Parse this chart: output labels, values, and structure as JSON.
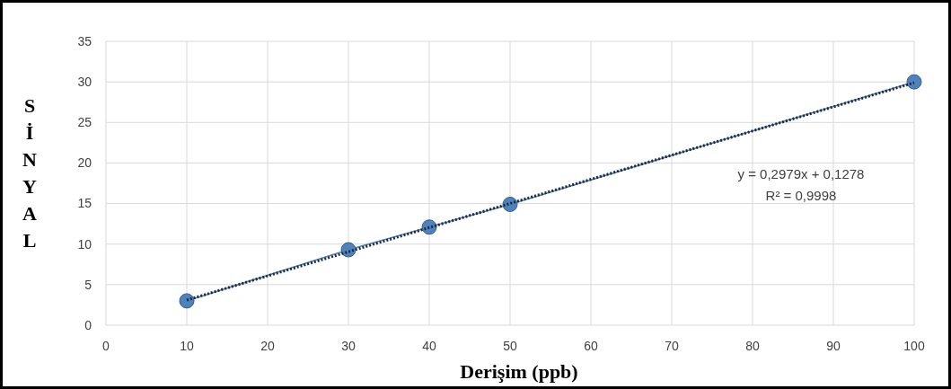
{
  "chart_data": {
    "type": "line",
    "xlabel": "Derişim (ppb)",
    "ylabel": "SİNYAL",
    "xlim": [
      0,
      100
    ],
    "xticks": [
      0,
      10,
      20,
      30,
      40,
      50,
      60,
      70,
      80,
      90,
      100
    ],
    "ylim": [
      0,
      35
    ],
    "yticks": [
      0,
      5,
      10,
      15,
      20,
      25,
      30,
      35
    ],
    "grid": true,
    "series": [
      {
        "color": "#4f81bd",
        "marker": "circle",
        "line_style": "solid",
        "x": [
          10,
          30,
          40,
          50,
          100
        ],
        "values": [
          3,
          9.3,
          12.1,
          14.9,
          30
        ]
      },
      {
        "color": "#1f2a3a",
        "marker": "none",
        "line_style": "dotted",
        "x": [
          10,
          100
        ],
        "values": [
          3.1,
          29.9
        ]
      }
    ],
    "annotations": [
      "y = 0,2979x + 0,1278",
      "R² = 0,9998"
    ]
  }
}
